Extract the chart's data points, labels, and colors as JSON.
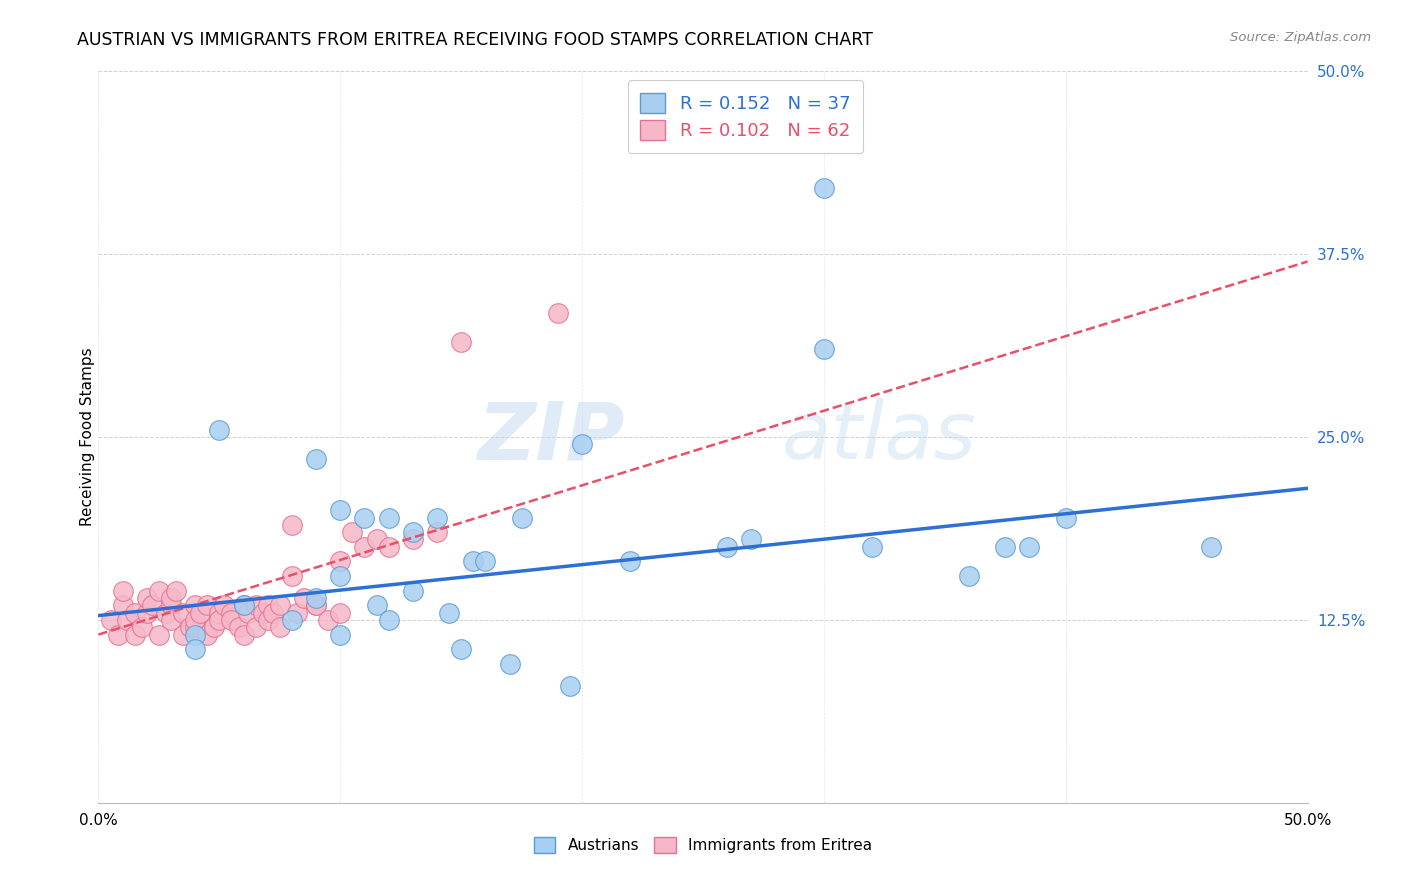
{
  "title": "AUSTRIAN VS IMMIGRANTS FROM ERITREA RECEIVING FOOD STAMPS CORRELATION CHART",
  "source": "Source: ZipAtlas.com",
  "ylabel": "Receiving Food Stamps",
  "xlim": [
    0.0,
    0.5
  ],
  "ylim": [
    0.0,
    0.5
  ],
  "blue_color": "#A8CFF0",
  "pink_color": "#F5B8C8",
  "blue_edge_color": "#5B9BD5",
  "pink_edge_color": "#E87090",
  "blue_line_color": "#2E6FD4",
  "pink_line_color": "#E8506A",
  "watermark_color": "#D0E4F5",
  "blue_scatter_x": [
    0.27,
    0.3,
    0.05,
    0.09,
    0.1,
    0.11,
    0.12,
    0.13,
    0.14,
    0.155,
    0.16,
    0.175,
    0.2,
    0.22,
    0.26,
    0.27,
    0.3,
    0.32,
    0.36,
    0.375,
    0.385,
    0.06,
    0.08,
    0.09,
    0.1,
    0.1,
    0.115,
    0.12,
    0.13,
    0.145,
    0.15,
    0.17,
    0.195,
    0.4,
    0.46,
    0.04,
    0.04
  ],
  "blue_scatter_y": [
    0.46,
    0.42,
    0.255,
    0.235,
    0.2,
    0.195,
    0.195,
    0.185,
    0.195,
    0.165,
    0.165,
    0.195,
    0.245,
    0.165,
    0.175,
    0.18,
    0.31,
    0.175,
    0.155,
    0.175,
    0.175,
    0.135,
    0.125,
    0.14,
    0.155,
    0.115,
    0.135,
    0.125,
    0.145,
    0.13,
    0.105,
    0.095,
    0.08,
    0.195,
    0.175,
    0.115,
    0.105
  ],
  "pink_scatter_x": [
    0.005,
    0.008,
    0.01,
    0.01,
    0.012,
    0.015,
    0.015,
    0.018,
    0.02,
    0.02,
    0.022,
    0.025,
    0.025,
    0.028,
    0.03,
    0.03,
    0.03,
    0.032,
    0.035,
    0.035,
    0.038,
    0.04,
    0.04,
    0.04,
    0.042,
    0.045,
    0.045,
    0.048,
    0.05,
    0.05,
    0.052,
    0.055,
    0.055,
    0.058,
    0.06,
    0.06,
    0.062,
    0.065,
    0.065,
    0.068,
    0.07,
    0.07,
    0.072,
    0.075,
    0.075,
    0.08,
    0.08,
    0.082,
    0.085,
    0.09,
    0.09,
    0.095,
    0.1,
    0.1,
    0.105,
    0.11,
    0.115,
    0.12,
    0.13,
    0.14,
    0.15,
    0.19
  ],
  "pink_scatter_y": [
    0.125,
    0.115,
    0.135,
    0.145,
    0.125,
    0.13,
    0.115,
    0.12,
    0.13,
    0.14,
    0.135,
    0.145,
    0.115,
    0.13,
    0.135,
    0.125,
    0.14,
    0.145,
    0.13,
    0.115,
    0.12,
    0.135,
    0.12,
    0.125,
    0.13,
    0.135,
    0.115,
    0.12,
    0.13,
    0.125,
    0.135,
    0.13,
    0.125,
    0.12,
    0.135,
    0.115,
    0.13,
    0.135,
    0.12,
    0.13,
    0.135,
    0.125,
    0.13,
    0.135,
    0.12,
    0.19,
    0.155,
    0.13,
    0.14,
    0.135,
    0.135,
    0.125,
    0.13,
    0.165,
    0.185,
    0.175,
    0.18,
    0.175,
    0.18,
    0.185,
    0.315,
    0.335
  ],
  "blue_line_x0": 0.0,
  "blue_line_x1": 0.5,
  "blue_line_y0": 0.128,
  "blue_line_y1": 0.215,
  "pink_line_x0": 0.0,
  "pink_line_x1": 0.5,
  "pink_line_y0": 0.115,
  "pink_line_y1": 0.37
}
